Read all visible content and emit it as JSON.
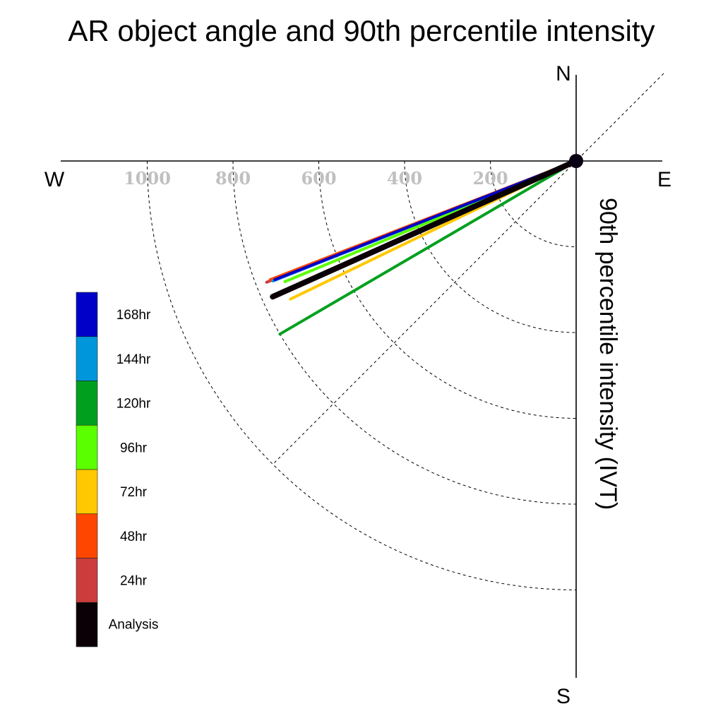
{
  "chart_data": {
    "type": "polar-line",
    "title": "AR object angle and 90th percentile intensity",
    "radial_label": "90th percentile intensity (IVT)",
    "compass": {
      "north": "N",
      "south": "S",
      "east": "E",
      "west": "W"
    },
    "radial_ticks": [
      "200",
      "400",
      "600",
      "800",
      "1000"
    ],
    "radial_tick_values": [
      200,
      400,
      600,
      800,
      1000
    ],
    "radial_range": [
      0,
      1200
    ],
    "grid": true,
    "legend_position": "left",
    "series": [
      {
        "name": "Analysis",
        "color": "#0a0005",
        "angle_deg_below_west": 24.1,
        "intensity": 775
      },
      {
        "name": "24hr",
        "color": "#cc3c3c",
        "angle_deg_below_west": 21.4,
        "intensity": 775
      },
      {
        "name": "48hr",
        "color": "#ff4600",
        "angle_deg_below_west": 21.2,
        "intensity": 765
      },
      {
        "name": "72hr",
        "color": "#ffc800",
        "angle_deg_below_west": 25.8,
        "intensity": 740
      },
      {
        "name": "96hr",
        "color": "#5aff00",
        "angle_deg_below_west": 22.5,
        "intensity": 735
      },
      {
        "name": "120hr",
        "color": "#00a01e",
        "angle_deg_below_west": 30.3,
        "intensity": 800
      },
      {
        "name": "144hr",
        "color": "#0096dc",
        "angle_deg_below_west": 21.6,
        "intensity": 760
      },
      {
        "name": "168hr",
        "color": "#0000c8",
        "angle_deg_below_west": 21.5,
        "intensity": 755
      }
    ]
  }
}
